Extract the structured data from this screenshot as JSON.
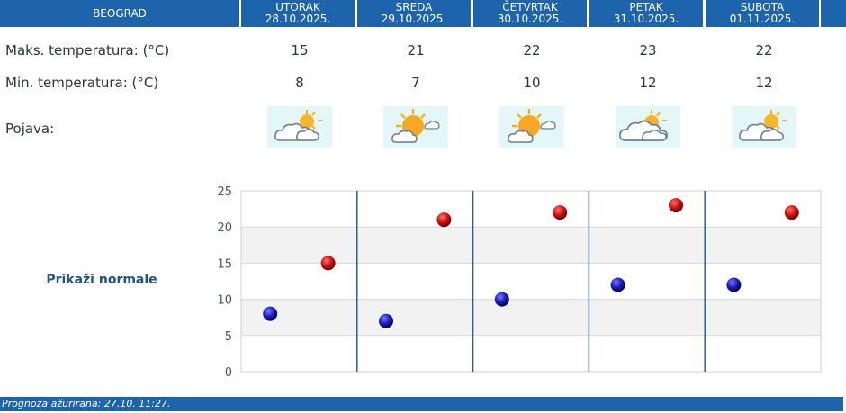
{
  "header": {
    "city": "BEOGRAD",
    "days": [
      {
        "name": "UTORAK",
        "date": "28.10.2025."
      },
      {
        "name": "SREDA",
        "date": "29.10.2025."
      },
      {
        "name": "ČETVRTAK",
        "date": "30.10.2025."
      },
      {
        "name": "PETAK",
        "date": "31.10.2025."
      },
      {
        "name": "SUBOTA",
        "date": "01.11.2025."
      }
    ]
  },
  "rows": {
    "max_label": "Maks. temperatura: (°C)",
    "min_label": "Min. temperatura: (°C)",
    "phenomenon_label": "Pojava:",
    "max": [
      "15",
      "21",
      "22",
      "23",
      "22"
    ],
    "min": [
      "8",
      "7",
      "10",
      "12",
      "12"
    ],
    "icons": [
      "partly-cloudy-icon",
      "sunny-with-cloud-icon",
      "sunny-with-cloud-icon",
      "cloudy-with-sun-icon",
      "partly-cloudy-icon"
    ]
  },
  "normals_link": "Prikaži normale",
  "footer": {
    "updated": "Prognoza ažurirana:  27.10. 11:27."
  },
  "colors": {
    "header": "#1e64ad",
    "max_dot": "#cc1111",
    "min_dot": "#1a1ab8"
  },
  "chart_data": {
    "type": "scatter",
    "categories": [
      "UTORAK",
      "SREDA",
      "ČETVRTAK",
      "PETAK",
      "SUBOTA"
    ],
    "series": [
      {
        "values": [
          15,
          21,
          22,
          23,
          22
        ]
      },
      {
        "values": [
          8,
          7,
          10,
          12,
          12
        ]
      }
    ],
    "yticks": [
      "0",
      "5",
      "10",
      "15",
      "20",
      "25"
    ],
    "ylim": [
      0,
      25
    ],
    "grid": true
  }
}
